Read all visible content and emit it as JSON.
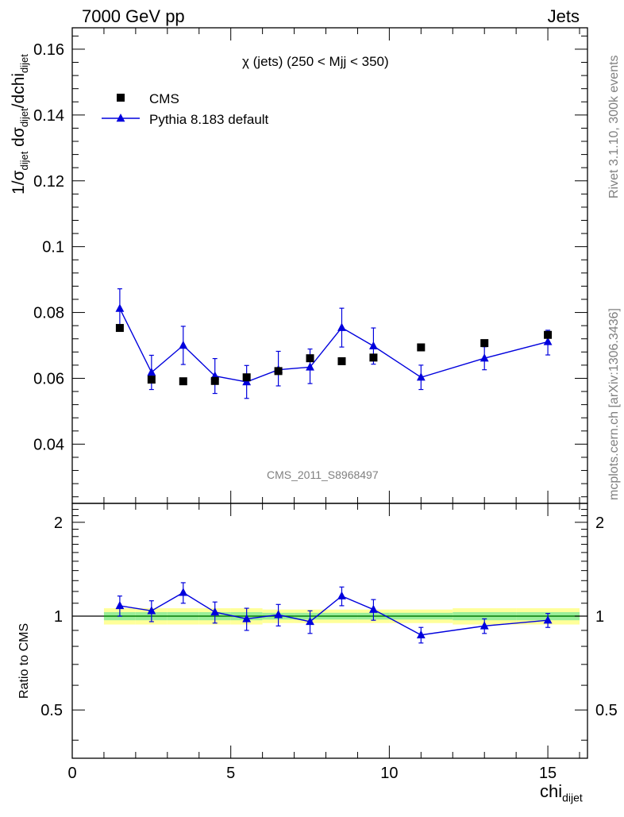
{
  "header": {
    "energy_label": "7000 GeV pp",
    "category_label": "Jets"
  },
  "side_text": {
    "rivet": "Rivet 3.1.10,  300k events",
    "mcplots": "mcplots.cern.ch [arXiv:1306.3436]"
  },
  "watermark": "CMS_2011_S8968497",
  "colors": {
    "cms": "#000000",
    "pythia": "#0000dd",
    "band_outer": "#ffff99",
    "band_inner": "#99ee99",
    "ref_line": "#008800"
  },
  "chart_data": [
    {
      "type": "scatter",
      "title": "χ (jets) (250 < Mjj <  350)",
      "ylabel": "1/σdijet dσdijet/dchidijet",
      "xlim": [
        0,
        16.25
      ],
      "ylim": [
        0.022,
        0.1665
      ],
      "yticks": [
        0.04,
        0.06,
        0.08,
        0.1,
        0.12,
        0.14,
        0.16
      ],
      "yticklabels": [
        "0.04",
        "0.06",
        "0.08",
        "0.1",
        "0.12",
        "0.14",
        "0.16"
      ],
      "legend_position": "top-left",
      "series": [
        {
          "name": "CMS",
          "marker": "square",
          "x": [
            1.5,
            2.5,
            3.5,
            4.5,
            5.5,
            6.5,
            7.5,
            8.5,
            9.5,
            11,
            13,
            15
          ],
          "y": [
            0.0753,
            0.0596,
            0.0591,
            0.0592,
            0.0603,
            0.0622,
            0.0661,
            0.0652,
            0.0663,
            0.0694,
            0.0707,
            0.0732
          ]
        },
        {
          "name": "Pythia 8.183 default",
          "marker": "triangle",
          "x": [
            1.5,
            2.5,
            3.5,
            4.5,
            5.5,
            6.5,
            7.5,
            8.5,
            9.5,
            11,
            13,
            15
          ],
          "y": [
            0.0812,
            0.0618,
            0.07,
            0.0607,
            0.0589,
            0.0626,
            0.0634,
            0.0754,
            0.0698,
            0.0603,
            0.0661,
            0.0711
          ],
          "err_up": [
            0.006,
            0.0052,
            0.0058,
            0.0053,
            0.005,
            0.0056,
            0.0055,
            0.0059,
            0.0055,
            0.0037,
            0.0035,
            0.0035
          ],
          "err_down": [
            0.006,
            0.0052,
            0.0058,
            0.0053,
            0.005,
            0.0049,
            0.005,
            0.0059,
            0.0055,
            0.0037,
            0.0035,
            0.004
          ]
        }
      ]
    },
    {
      "type": "line",
      "ylabel": "Ratio to CMS",
      "xlabel": "chidijet",
      "xlim": [
        0,
        16.25
      ],
      "ylim": [
        0.35,
        2.3
      ],
      "log_y": true,
      "xticks": [
        0,
        5,
        10,
        15
      ],
      "xticklabels": [
        "0",
        "5",
        "10",
        "15"
      ],
      "yticks": [
        0.5,
        1,
        2
      ],
      "yticklabels": [
        "0.5",
        "1",
        "2"
      ],
      "series": [
        {
          "name": "Pythia 8.183 default",
          "x": [
            1.5,
            2.5,
            3.5,
            4.5,
            5.5,
            6.5,
            7.5,
            8.5,
            9.5,
            11,
            13,
            15
          ],
          "y": [
            1.08,
            1.04,
            1.19,
            1.03,
            0.98,
            1.01,
            0.96,
            1.16,
            1.05,
            0.87,
            0.93,
            0.97
          ],
          "err_up": [
            0.08,
            0.08,
            0.09,
            0.08,
            0.08,
            0.08,
            0.08,
            0.08,
            0.08,
            0.05,
            0.05,
            0.05
          ],
          "err_down": [
            0.08,
            0.08,
            0.09,
            0.08,
            0.08,
            0.08,
            0.08,
            0.08,
            0.08,
            0.05,
            0.05,
            0.05
          ]
        }
      ],
      "band": {
        "x_edges": [
          1,
          2,
          3,
          4,
          5,
          6,
          7,
          8,
          9,
          10,
          12,
          14,
          16
        ],
        "outer_half_width": [
          0.06,
          0.06,
          0.06,
          0.06,
          0.06,
          0.05,
          0.05,
          0.05,
          0.05,
          0.05,
          0.06,
          0.06
        ],
        "inner_half_width": [
          0.03,
          0.03,
          0.03,
          0.03,
          0.03,
          0.025,
          0.025,
          0.025,
          0.025,
          0.025,
          0.03,
          0.03
        ]
      }
    }
  ]
}
